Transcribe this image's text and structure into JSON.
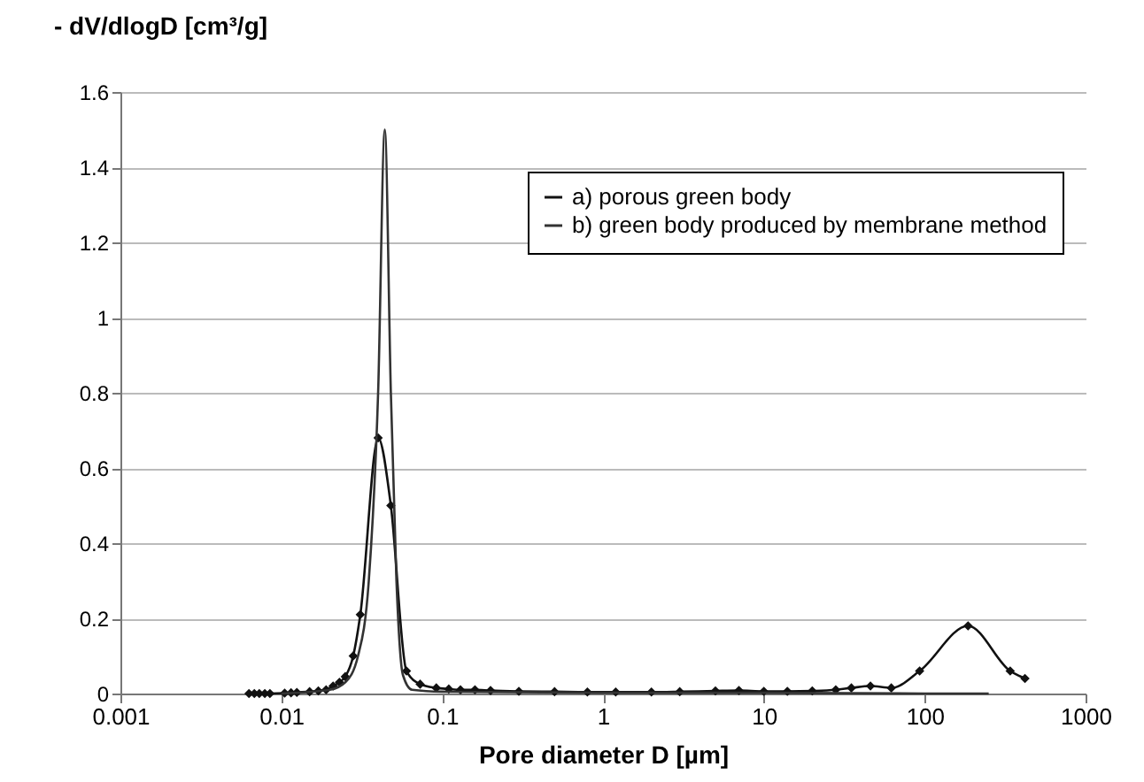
{
  "chart_data": {
    "type": "line",
    "xlabel": "Pore diameter D  [µm]",
    "ylabel": "- dV/dlogD [cm³/g]",
    "log": "x",
    "xlim": [
      0.001,
      1000
    ],
    "xticks": [
      0.001,
      0.01,
      0.1,
      1,
      10,
      100,
      1000
    ],
    "ylim": [
      0,
      1.6
    ],
    "yticks": [
      0,
      0.2,
      0.4,
      0.6,
      0.8,
      1,
      1.2,
      1.4,
      1.6
    ],
    "grid": "y",
    "legend": "top right",
    "series": [
      {
        "name": "a) porous green body",
        "color": "#111111",
        "marker": "diamond",
        "x": [
          0.0063,
          0.0068,
          0.0073,
          0.0079,
          0.0085,
          0.0105,
          0.0115,
          0.0125,
          0.015,
          0.017,
          0.019,
          0.021,
          0.023,
          0.025,
          0.028,
          0.031,
          0.04,
          0.048,
          0.06,
          0.073,
          0.092,
          0.11,
          0.13,
          0.16,
          0.2,
          0.3,
          0.5,
          0.8,
          1.2,
          2,
          3,
          5,
          7,
          10,
          14,
          20,
          28,
          35,
          46,
          62,
          93,
          186,
          340,
          420
        ],
        "values": [
          0,
          0,
          0,
          0,
          0,
          0.001,
          0.002,
          0.003,
          0.005,
          0.007,
          0.01,
          0.02,
          0.03,
          0.045,
          0.1,
          0.21,
          0.68,
          0.5,
          0.06,
          0.025,
          0.015,
          0.012,
          0.01,
          0.01,
          0.008,
          0.006,
          0.005,
          0.004,
          0.004,
          0.004,
          0.005,
          0.007,
          0.008,
          0.006,
          0.006,
          0.007,
          0.01,
          0.015,
          0.02,
          0.015,
          0.06,
          0.18,
          0.06,
          0.04
        ]
      },
      {
        "name": "b) green body produced by membrane method",
        "color": "#333333",
        "marker": "none",
        "x": [
          0.01,
          0.02,
          0.025,
          0.03,
          0.035,
          0.04,
          0.044,
          0.048,
          0.052,
          0.057,
          0.065,
          0.1,
          1,
          10,
          100,
          250
        ],
        "values": [
          0,
          0.01,
          0.03,
          0.1,
          0.3,
          0.8,
          1.5,
          0.8,
          0.3,
          0.05,
          0.01,
          0.005,
          0.002,
          0.002,
          0,
          0
        ]
      }
    ]
  }
}
